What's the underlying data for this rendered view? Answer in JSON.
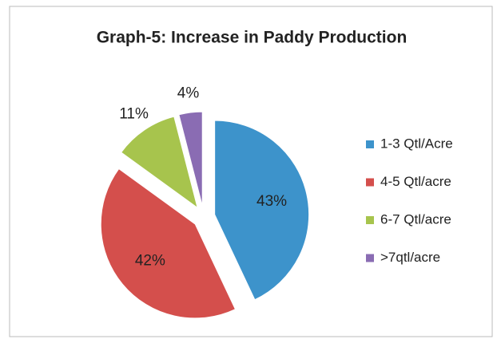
{
  "chart_data": {
    "type": "pie",
    "title": "Graph-5: Increase in Paddy Production",
    "categories": [
      "1-3 Qtl/Acre",
      "4-5 Qtl/acre",
      "6-7 Qtl/acre",
      ">7qtl/acre"
    ],
    "values": [
      43,
      42,
      11,
      4
    ],
    "value_labels": [
      "43%",
      "42%",
      "11%",
      "4%"
    ],
    "colors": [
      "#3d93cb",
      "#d44f4c",
      "#a7c44d",
      "#8a6cb3"
    ],
    "legend": "right"
  }
}
